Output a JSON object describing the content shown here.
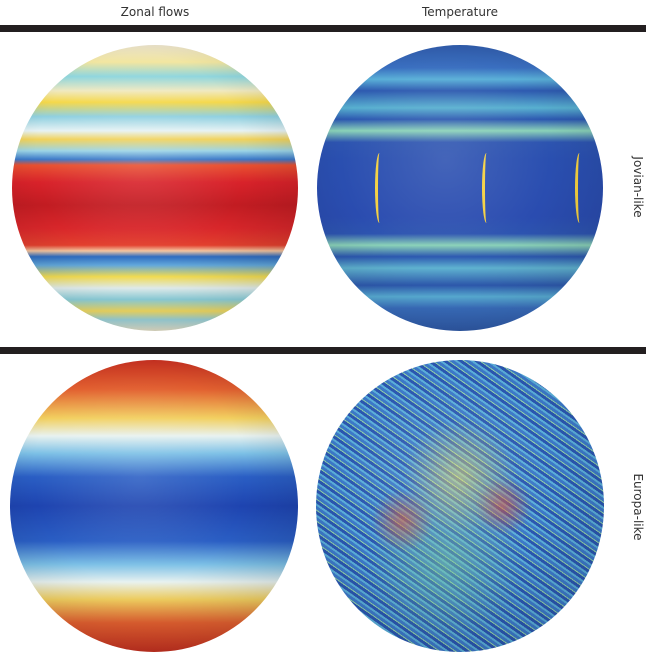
{
  "columns": [
    "Zonal flows",
    "Temperature"
  ],
  "rows": [
    "Jovian-like",
    "Europa-like"
  ]
}
